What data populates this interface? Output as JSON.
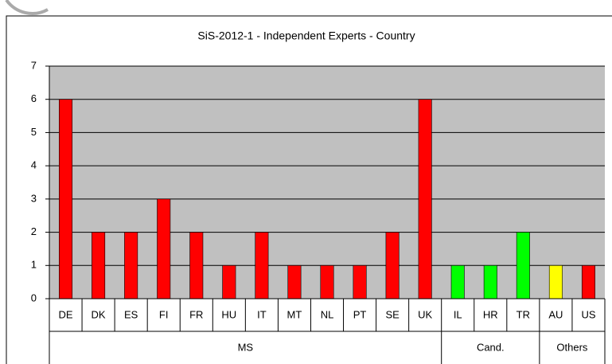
{
  "chart_data": {
    "type": "bar",
    "title": "SiS-2012-1 - Independent Experts - Country",
    "groups": [
      {
        "name": "MS",
        "categories": [
          "DE",
          "DK",
          "ES",
          "FI",
          "FR",
          "HU",
          "IT",
          "MT",
          "NL",
          "PT",
          "SE",
          "UK"
        ],
        "values": [
          6,
          2,
          2,
          3,
          2,
          1,
          2,
          1,
          1,
          1,
          2,
          6
        ],
        "colors": [
          "#ff0000",
          "#ff0000",
          "#ff0000",
          "#ff0000",
          "#ff0000",
          "#ff0000",
          "#ff0000",
          "#ff0000",
          "#ff0000",
          "#ff0000",
          "#ff0000",
          "#ff0000"
        ]
      },
      {
        "name": "Cand.",
        "categories": [
          "IL",
          "HR",
          "TR"
        ],
        "values": [
          1,
          1,
          2
        ],
        "colors": [
          "#00ff00",
          "#00ff00",
          "#00ff00"
        ]
      },
      {
        "name": "Others",
        "categories": [
          "AU",
          "US"
        ],
        "values": [
          1,
          1
        ],
        "colors": [
          "#ffff00",
          "#ff0000"
        ]
      }
    ],
    "ylim": [
      0,
      7
    ],
    "yticks": [
      0,
      1,
      2,
      3,
      4,
      5,
      6,
      7
    ],
    "grid": true,
    "plot_background": "#c0c0c0"
  }
}
